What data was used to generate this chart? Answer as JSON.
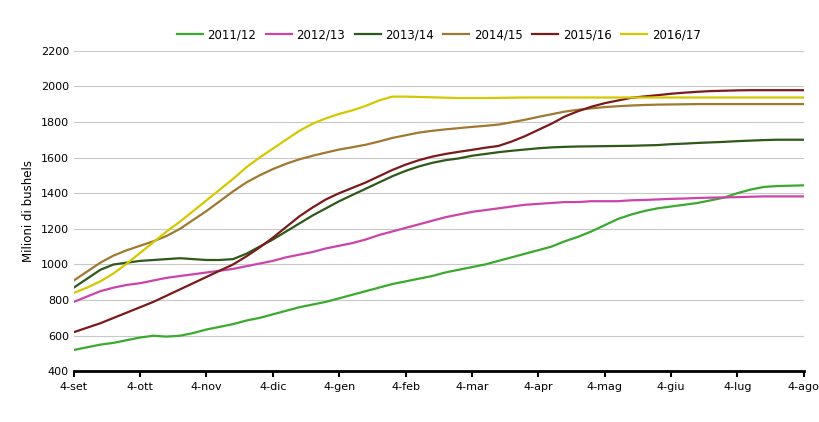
{
  "series": {
    "2011/12": {
      "color": "#3aaa2e",
      "values": [
        520,
        535,
        550,
        560,
        575,
        590,
        600,
        595,
        600,
        615,
        635,
        650,
        665,
        685,
        700,
        720,
        740,
        760,
        775,
        790,
        810,
        830,
        850,
        870,
        890,
        905,
        920,
        935,
        955,
        970,
        985,
        1000,
        1020,
        1040,
        1060,
        1080,
        1100,
        1130,
        1155,
        1185,
        1220,
        1255,
        1280,
        1300,
        1315,
        1325,
        1335,
        1345,
        1360,
        1375,
        1400,
        1420,
        1435,
        1440,
        1442,
        1444
      ]
    },
    "2012/13": {
      "color": "#cc44aa",
      "values": [
        790,
        820,
        850,
        870,
        885,
        895,
        910,
        925,
        935,
        945,
        955,
        965,
        975,
        990,
        1005,
        1020,
        1040,
        1055,
        1070,
        1090,
        1105,
        1120,
        1140,
        1165,
        1185,
        1205,
        1225,
        1245,
        1265,
        1280,
        1295,
        1305,
        1315,
        1325,
        1335,
        1340,
        1345,
        1350,
        1350,
        1355,
        1355,
        1355,
        1360,
        1362,
        1365,
        1368,
        1370,
        1373,
        1375,
        1376,
        1378,
        1380,
        1382,
        1382,
        1382,
        1382
      ]
    },
    "2013/14": {
      "color": "#2d5a1a",
      "values": [
        870,
        920,
        970,
        1000,
        1010,
        1020,
        1025,
        1030,
        1035,
        1030,
        1025,
        1025,
        1030,
        1060,
        1100,
        1140,
        1185,
        1230,
        1275,
        1315,
        1355,
        1390,
        1425,
        1460,
        1495,
        1525,
        1550,
        1570,
        1585,
        1595,
        1610,
        1620,
        1630,
        1638,
        1645,
        1652,
        1657,
        1660,
        1662,
        1663,
        1664,
        1665,
        1666,
        1668,
        1670,
        1675,
        1678,
        1682,
        1685,
        1688,
        1692,
        1695,
        1698,
        1700,
        1700,
        1700
      ]
    },
    "2014/15": {
      "color": "#a07830",
      "values": [
        910,
        960,
        1010,
        1050,
        1080,
        1105,
        1130,
        1160,
        1200,
        1250,
        1300,
        1355,
        1410,
        1460,
        1500,
        1535,
        1565,
        1590,
        1610,
        1628,
        1645,
        1658,
        1672,
        1690,
        1710,
        1725,
        1740,
        1750,
        1758,
        1765,
        1772,
        1778,
        1785,
        1798,
        1812,
        1828,
        1843,
        1858,
        1868,
        1876,
        1883,
        1888,
        1892,
        1895,
        1897,
        1898,
        1899,
        1900,
        1900,
        1900,
        1900,
        1900,
        1900,
        1900,
        1900,
        1900
      ]
    },
    "2015/16": {
      "color": "#7b1a1a",
      "values": [
        620,
        645,
        670,
        700,
        730,
        760,
        790,
        825,
        860,
        895,
        930,
        965,
        1000,
        1045,
        1095,
        1150,
        1210,
        1270,
        1320,
        1365,
        1400,
        1430,
        1460,
        1495,
        1530,
        1560,
        1585,
        1605,
        1620,
        1632,
        1643,
        1655,
        1665,
        1690,
        1720,
        1755,
        1790,
        1830,
        1860,
        1885,
        1905,
        1920,
        1935,
        1943,
        1950,
        1958,
        1964,
        1969,
        1973,
        1975,
        1977,
        1978,
        1978,
        1978,
        1978,
        1978
      ]
    },
    "2016/17": {
      "color": "#d4c800",
      "values": [
        840,
        870,
        905,
        950,
        1005,
        1065,
        1125,
        1185,
        1240,
        1300,
        1360,
        1420,
        1480,
        1545,
        1600,
        1650,
        1700,
        1750,
        1790,
        1820,
        1845,
        1865,
        1890,
        1920,
        1942,
        1942,
        1940,
        1938,
        1936,
        1934,
        1934,
        1934,
        1935,
        1936,
        1937,
        1937,
        1937,
        1937,
        1937,
        1937,
        1937,
        1937,
        1937,
        1937,
        1937,
        1937,
        1937,
        1937,
        1937,
        1937,
        1937,
        1937,
        1937,
        1937,
        1937,
        1937
      ]
    }
  },
  "x_labels": [
    "4-set",
    "4-ott",
    "4-nov",
    "4-dic",
    "4-gen",
    "4-feb",
    "4-mar",
    "4-apr",
    "4-mag",
    "4-giu",
    "4-lug",
    "4-ago"
  ],
  "ylabel": "Milioni di bushels",
  "ylim": [
    400,
    2200
  ],
  "yticks": [
    400,
    600,
    800,
    1000,
    1200,
    1400,
    1600,
    1800,
    2000,
    2200
  ],
  "n_points": 56,
  "legend_order": [
    "2011/12",
    "2012/13",
    "2013/14",
    "2014/15",
    "2015/16",
    "2016/17"
  ],
  "background_color": "#ffffff",
  "grid_color": "#c8c8c8",
  "axis_color": "#000000",
  "line_width": 1.6,
  "legend_fontsize": 8.5,
  "ylabel_fontsize": 8.5,
  "tick_fontsize": 8
}
